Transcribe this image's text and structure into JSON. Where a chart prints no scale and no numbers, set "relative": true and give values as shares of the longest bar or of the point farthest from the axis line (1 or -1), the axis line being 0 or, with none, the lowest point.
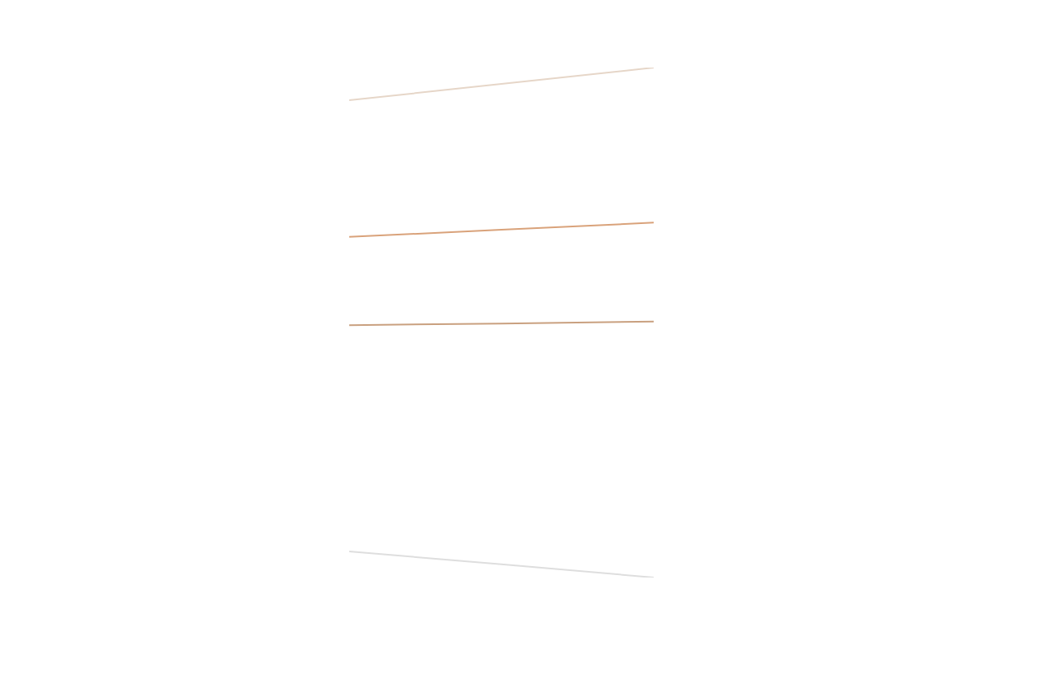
{
  "chart_data": {
    "type": "line",
    "relative": true,
    "categories": [
      null,
      null,
      null
    ],
    "marker": "none",
    "line_style": "solid",
    "grid": false,
    "series": [
      {
        "color": "#e6d6c8",
        "values": [
          0.936,
          0.968,
          1
        ]
      },
      {
        "color": "#d9a27a",
        "values": [
          0.668,
          0.682,
          0.696
        ]
      },
      {
        "color": "#c9a07f",
        "values": [
          0.495,
          0.498,
          0.502
        ]
      },
      {
        "color": "#dedede",
        "values": [
          0.051,
          0.026,
          0
        ]
      }
    ]
  }
}
